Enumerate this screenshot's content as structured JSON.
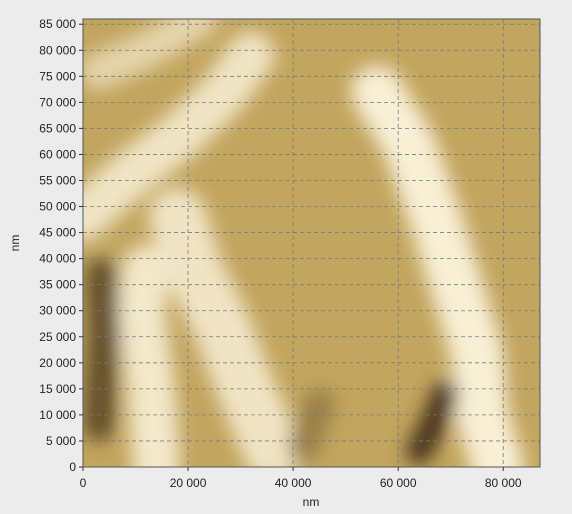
{
  "chart_data": {
    "type": "heatmap",
    "title": "",
    "xlabel": "nm",
    "ylabel": "nm",
    "xlim": [
      0,
      87000
    ],
    "ylim": [
      0,
      86000
    ],
    "xticks": [
      0,
      20000,
      40000,
      60000,
      80000
    ],
    "xtick_labels": [
      "0",
      "20 000",
      "40 000",
      "60 000",
      "80 000"
    ],
    "yticks": [
      0,
      5000,
      10000,
      15000,
      20000,
      25000,
      30000,
      35000,
      40000,
      45000,
      50000,
      55000,
      60000,
      65000,
      70000,
      75000,
      80000,
      85000
    ],
    "ytick_labels": [
      "0",
      "5 000",
      "10 000",
      "15 000",
      "20 000",
      "25 000",
      "30 000",
      "35 000",
      "40 000",
      "45 000",
      "50 000",
      "55 000",
      "60 000",
      "65 000",
      "70 000",
      "75 000",
      "80 000",
      "85 000"
    ],
    "grid": true,
    "colormap": {
      "low": "#3a2a12",
      "mid": "#c2a55e",
      "high": "#fbf4dd"
    },
    "surface_features": [
      {
        "name": "fiber-left-vertical",
        "path_nm": [
          [
            14000,
            0
          ],
          [
            13000,
            15000
          ],
          [
            11000,
            30000
          ],
          [
            12000,
            38000
          ]
        ],
        "width_nm": 9000,
        "level": 0.93
      },
      {
        "name": "fiber-center-diagonal",
        "path_nm": [
          [
            36000,
            3000
          ],
          [
            31000,
            15000
          ],
          [
            26000,
            28000
          ],
          [
            21000,
            38000
          ],
          [
            18000,
            48000
          ]
        ],
        "width_nm": 11000,
        "level": 0.9
      },
      {
        "name": "fiber-right-curved",
        "path_nm": [
          [
            79000,
            0
          ],
          [
            76000,
            10000
          ],
          [
            75000,
            22000
          ],
          [
            71000,
            35000
          ],
          [
            67000,
            48000
          ],
          [
            62000,
            62000
          ],
          [
            56000,
            72000
          ]
        ],
        "width_nm": 10000,
        "level": 0.97
      },
      {
        "name": "fiber-upper-left-diagonal",
        "path_nm": [
          [
            0,
            48000
          ],
          [
            10000,
            57000
          ],
          [
            19000,
            64000
          ],
          [
            27000,
            72000
          ],
          [
            32000,
            79000
          ]
        ],
        "width_nm": 9000,
        "level": 0.9
      },
      {
        "name": "fiber-upper-branch",
        "path_nm": [
          [
            3000,
            76000
          ],
          [
            12000,
            80000
          ],
          [
            22000,
            86000
          ]
        ],
        "width_nm": 7000,
        "level": 0.8
      },
      {
        "name": "dark-valley-left",
        "path_nm": [
          [
            3000,
            8000
          ],
          [
            4000,
            26000
          ],
          [
            3500,
            37000
          ]
        ],
        "width_nm": 6000,
        "level": 0.15
      },
      {
        "name": "dark-pit-lower-right",
        "path_nm": [
          [
            64000,
            3000
          ],
          [
            67000,
            9000
          ],
          [
            69000,
            14000
          ]
        ],
        "width_nm": 5000,
        "level": 0.05
      },
      {
        "name": "dark-lower-center",
        "path_nm": [
          [
            42000,
            4000
          ],
          [
            45000,
            12000
          ]
        ],
        "width_nm": 6000,
        "level": 0.35
      }
    ]
  }
}
